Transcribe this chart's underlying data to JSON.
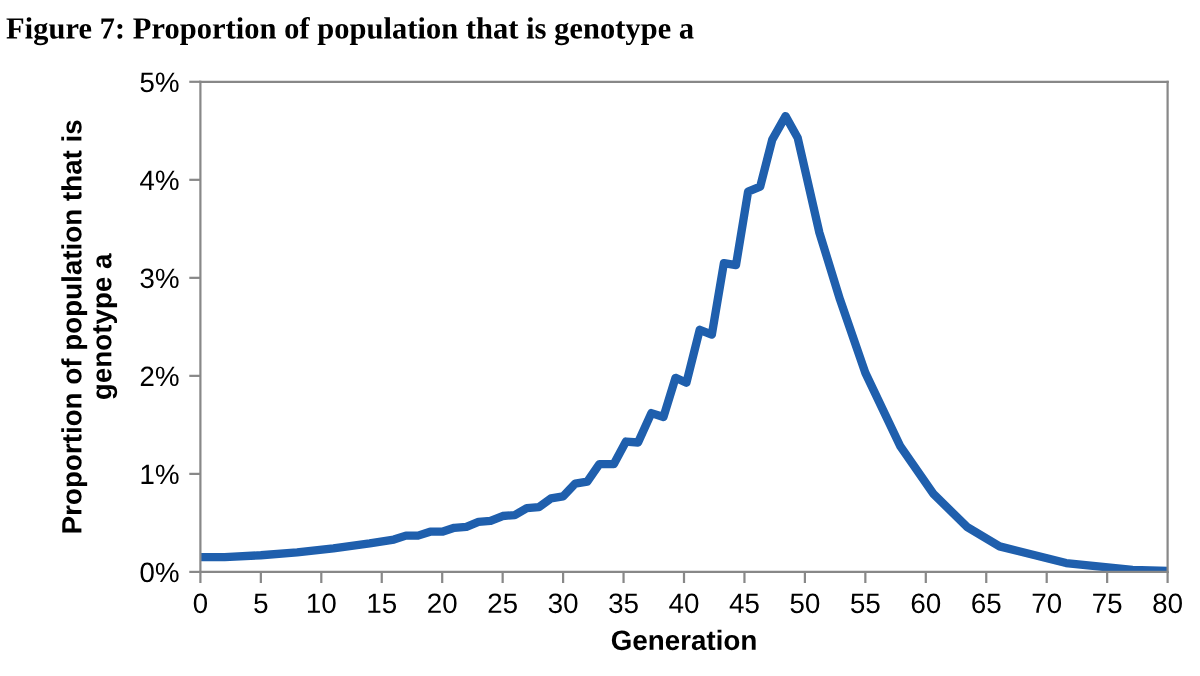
{
  "chart_data": {
    "type": "line",
    "title": "Figure 7: Proportion of population that is genotype a",
    "xlabel": "Generation",
    "ylabel": "Proportion of population that is\ngenotype a",
    "series": [
      {
        "color": "#1f5fad",
        "x": [
          0,
          2,
          5,
          8,
          11,
          14,
          16,
          17,
          18,
          19,
          20,
          21,
          22,
          23,
          24,
          25,
          26,
          27,
          28,
          29,
          30,
          31,
          32,
          33,
          34.2,
          35.2,
          36.2,
          37.3,
          38.3,
          39.3,
          40.2,
          41.3,
          42.3,
          43.3,
          44.3,
          45.3,
          46.3,
          47.3,
          48.4,
          49.4,
          51.2,
          52.9,
          55,
          57.9,
          60.6,
          63.4,
          66.1,
          71.6,
          77.1,
          80
        ],
        "values": [
          0.15,
          0.15,
          0.17,
          0.2,
          0.24,
          0.29,
          0.33,
          0.37,
          0.37,
          0.41,
          0.41,
          0.45,
          0.46,
          0.51,
          0.52,
          0.57,
          0.58,
          0.65,
          0.66,
          0.75,
          0.77,
          0.9,
          0.92,
          1.1,
          1.1,
          1.33,
          1.32,
          1.62,
          1.58,
          1.98,
          1.93,
          2.47,
          2.42,
          3.15,
          3.13,
          3.88,
          3.93,
          4.41,
          4.65,
          4.43,
          3.46,
          2.78,
          2.03,
          1.28,
          0.8,
          0.46,
          0.26,
          0.09,
          0.02,
          0.01
        ]
      }
    ],
    "xlim": [
      0,
      80
    ],
    "xticks": [
      0,
      5,
      10,
      15,
      20,
      25,
      30,
      35,
      40,
      45,
      50,
      55,
      60,
      65,
      70,
      75,
      80
    ],
    "ylim": [
      0,
      5
    ],
    "yticks": [
      {
        "value": 0,
        "label": "0%"
      },
      {
        "value": 1,
        "label": "1%"
      },
      {
        "value": 2,
        "label": "2%"
      },
      {
        "value": 3,
        "label": "3%"
      },
      {
        "value": 4,
        "label": "4%"
      },
      {
        "value": 5,
        "label": "5%"
      }
    ],
    "grid": false,
    "legend": false,
    "marker": "none",
    "line_style": "solid"
  }
}
